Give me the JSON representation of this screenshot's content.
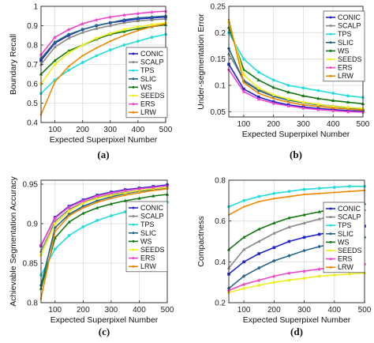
{
  "x_values": [
    50,
    100,
    150,
    200,
    250,
    300,
    350,
    400,
    450,
    500
  ],
  "series_names": [
    "CONIC",
    "SCALP",
    "TPS",
    "SLIC",
    "WS",
    "SEEDS",
    "ERS",
    "LRW"
  ],
  "series_colors": [
    "#2222cc",
    "#888888",
    "#22dddd",
    "#226688",
    "#117711",
    "#eeee22",
    "#ee44cc",
    "#ee8800"
  ],
  "chart_data": [
    {
      "type": "line",
      "panel_label": "(a)",
      "xlabel": "Expected Superpixel Number",
      "ylabel": "Boundary Recall",
      "xlim": [
        50,
        500
      ],
      "ylim": [
        0.4,
        1.0
      ],
      "xticks": [
        100,
        200,
        300,
        400,
        500
      ],
      "yticks": [
        0.4,
        0.5,
        0.6,
        0.7,
        0.8,
        0.9,
        1
      ],
      "grid": true,
      "legend": "bottom-right",
      "x": [
        50,
        100,
        150,
        200,
        250,
        300,
        350,
        400,
        450,
        500
      ],
      "series": [
        {
          "name": "CONIC",
          "values": [
            0.72,
            0.81,
            0.85,
            0.88,
            0.9,
            0.915,
            0.925,
            0.935,
            0.94,
            0.945
          ]
        },
        {
          "name": "SCALP",
          "values": [
            0.7,
            0.79,
            0.835,
            0.865,
            0.885,
            0.9,
            0.915,
            0.925,
            0.93,
            0.935
          ]
        },
        {
          "name": "TPS",
          "values": [
            0.55,
            0.62,
            0.67,
            0.71,
            0.745,
            0.775,
            0.8,
            0.82,
            0.84,
            0.855
          ]
        },
        {
          "name": "SLIC",
          "values": [
            0.73,
            0.815,
            0.855,
            0.88,
            0.9,
            0.915,
            0.93,
            0.94,
            0.945,
            0.95
          ]
        },
        {
          "name": "WS",
          "values": [
            0.65,
            0.72,
            0.77,
            0.8,
            0.83,
            0.855,
            0.87,
            0.885,
            0.895,
            0.905
          ]
        },
        {
          "name": "SEEDS",
          "values": [
            0.6,
            0.7,
            0.76,
            0.8,
            0.835,
            0.86,
            0.88,
            0.895,
            0.905,
            0.915
          ]
        },
        {
          "name": "ERS",
          "values": [
            0.75,
            0.84,
            0.88,
            0.91,
            0.93,
            0.945,
            0.955,
            0.963,
            0.97,
            0.975
          ]
        },
        {
          "name": "LRW",
          "values": [
            0.44,
            0.61,
            0.69,
            0.745,
            0.785,
            0.82,
            0.85,
            0.875,
            0.895,
            0.91
          ]
        }
      ]
    },
    {
      "type": "line",
      "panel_label": "(b)",
      "xlabel": "Expected Superpixel Number",
      "ylabel": "Under-segmentation Error",
      "xlim": [
        50,
        500
      ],
      "ylim": [
        0.04,
        0.25
      ],
      "xticks": [
        100,
        200,
        300,
        400,
        500
      ],
      "yticks": [
        0.05,
        0.1,
        0.15,
        0.2,
        0.25
      ],
      "grid": true,
      "legend": "top-right",
      "x": [
        50,
        100,
        150,
        200,
        250,
        300,
        350,
        400,
        450,
        500
      ],
      "series": [
        {
          "name": "CONIC",
          "values": [
            0.14,
            0.093,
            0.078,
            0.069,
            0.063,
            0.059,
            0.056,
            0.054,
            0.052,
            0.051
          ]
        },
        {
          "name": "SCALP",
          "values": [
            0.16,
            0.11,
            0.092,
            0.081,
            0.073,
            0.068,
            0.064,
            0.061,
            0.058,
            0.056
          ]
        },
        {
          "name": "TPS",
          "values": [
            0.2,
            0.15,
            0.125,
            0.11,
            0.1,
            0.095,
            0.09,
            0.085,
            0.08,
            0.077
          ]
        },
        {
          "name": "SLIC",
          "values": [
            0.17,
            0.108,
            0.09,
            0.079,
            0.072,
            0.067,
            0.063,
            0.06,
            0.057,
            0.055
          ]
        },
        {
          "name": "WS",
          "values": [
            0.21,
            0.13,
            0.11,
            0.096,
            0.087,
            0.08,
            0.075,
            0.071,
            0.068,
            0.065
          ]
        },
        {
          "name": "SEEDS",
          "values": [
            0.22,
            0.12,
            0.095,
            0.082,
            0.074,
            0.068,
            0.064,
            0.06,
            0.058,
            0.056
          ]
        },
        {
          "name": "ERS",
          "values": [
            0.13,
            0.088,
            0.074,
            0.066,
            0.061,
            0.057,
            0.054,
            0.052,
            0.05,
            0.049
          ]
        },
        {
          "name": "LRW",
          "values": [
            0.225,
            0.105,
            0.085,
            0.075,
            0.068,
            0.063,
            0.06,
            0.057,
            0.055,
            0.053
          ]
        }
      ]
    },
    {
      "type": "line",
      "panel_label": "(c)",
      "xlabel": "Expected Superpixel Number",
      "ylabel": "Achievable Segmentation Accuracy",
      "xlim": [
        50,
        500
      ],
      "ylim": [
        0.8,
        0.955
      ],
      "xticks": [
        100,
        200,
        300,
        400,
        500
      ],
      "yticks": [
        0.8,
        0.85,
        0.9,
        0.95
      ],
      "grid": true,
      "legend": "bottom-right",
      "x": [
        50,
        100,
        150,
        200,
        250,
        300,
        350,
        400,
        450,
        500
      ],
      "series": [
        {
          "name": "CONIC",
          "values": [
            0.872,
            0.908,
            0.922,
            0.93,
            0.936,
            0.94,
            0.943,
            0.945,
            0.947,
            0.949
          ]
        },
        {
          "name": "SCALP",
          "values": [
            0.865,
            0.903,
            0.918,
            0.927,
            0.933,
            0.937,
            0.94,
            0.942,
            0.944,
            0.946
          ]
        },
        {
          "name": "TPS",
          "values": [
            0.835,
            0.868,
            0.885,
            0.896,
            0.904,
            0.91,
            0.915,
            0.919,
            0.923,
            0.927
          ]
        },
        {
          "name": "SLIC",
          "values": [
            0.822,
            0.895,
            0.912,
            0.922,
            0.929,
            0.934,
            0.938,
            0.941,
            0.943,
            0.945
          ]
        },
        {
          "name": "WS",
          "values": [
            0.818,
            0.882,
            0.902,
            0.913,
            0.92,
            0.925,
            0.929,
            0.932,
            0.935,
            0.937
          ]
        },
        {
          "name": "SEEDS",
          "values": [
            0.86,
            0.9,
            0.916,
            0.926,
            0.932,
            0.936,
            0.939,
            0.942,
            0.944,
            0.946
          ]
        },
        {
          "name": "ERS",
          "values": [
            0.873,
            0.907,
            0.921,
            0.929,
            0.935,
            0.939,
            0.942,
            0.944,
            0.946,
            0.948
          ]
        },
        {
          "name": "LRW",
          "values": [
            0.805,
            0.89,
            0.91,
            0.92,
            0.927,
            0.932,
            0.936,
            0.939,
            0.942,
            0.944
          ]
        }
      ]
    },
    {
      "type": "line",
      "panel_label": "(d)",
      "xlabel": "Expected Superpixel Number",
      "ylabel": "Compactness",
      "xlim": [
        50,
        500
      ],
      "ylim": [
        0.2,
        0.8
      ],
      "xticks": [
        100,
        200,
        300,
        400,
        500
      ],
      "yticks": [
        0.2,
        0.4,
        0.6,
        0.8
      ],
      "grid": true,
      "legend": "bottom-right",
      "x": [
        50,
        100,
        150,
        200,
        250,
        300,
        350,
        400,
        450,
        500
      ],
      "series": [
        {
          "name": "CONIC",
          "values": [
            0.34,
            0.4,
            0.44,
            0.47,
            0.5,
            0.52,
            0.535,
            0.55,
            0.56,
            0.575
          ]
        },
        {
          "name": "SCALP",
          "values": [
            0.37,
            0.46,
            0.5,
            0.54,
            0.57,
            0.59,
            0.61,
            0.625,
            0.64,
            0.655
          ]
        },
        {
          "name": "TPS",
          "values": [
            0.67,
            0.7,
            0.72,
            0.735,
            0.745,
            0.755,
            0.76,
            0.765,
            0.77,
            0.77
          ]
        },
        {
          "name": "SLIC",
          "values": [
            0.27,
            0.33,
            0.37,
            0.405,
            0.43,
            0.455,
            0.475,
            0.49,
            0.505,
            0.52
          ]
        },
        {
          "name": "WS",
          "values": [
            0.46,
            0.52,
            0.56,
            0.59,
            0.615,
            0.63,
            0.645,
            0.66,
            0.67,
            0.685
          ]
        },
        {
          "name": "SEEDS",
          "values": [
            0.25,
            0.27,
            0.285,
            0.3,
            0.31,
            0.32,
            0.33,
            0.335,
            0.34,
            0.345
          ]
        },
        {
          "name": "ERS",
          "values": [
            0.26,
            0.29,
            0.31,
            0.33,
            0.345,
            0.355,
            0.365,
            0.375,
            0.38,
            0.39
          ]
        },
        {
          "name": "LRW",
          "values": [
            0.63,
            0.67,
            0.695,
            0.71,
            0.72,
            0.73,
            0.735,
            0.74,
            0.745,
            0.75
          ]
        }
      ]
    }
  ]
}
